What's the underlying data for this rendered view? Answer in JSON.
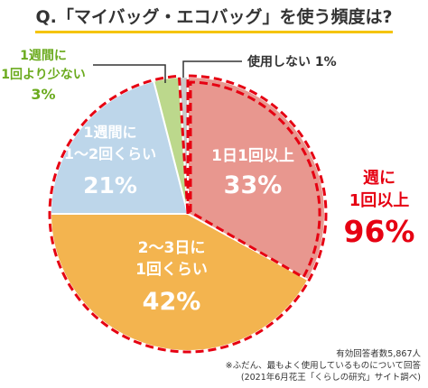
{
  "question": "Q.「マイバッグ・エコバッグ」を使う頻度は?",
  "chart_data": {
    "type": "pie",
    "slices": [
      {
        "label_lines": [
          "1日1回以上"
        ],
        "value": 33,
        "value_text": "33%",
        "color": "#e8978f",
        "label_color": "#ffffff"
      },
      {
        "label_lines": [
          "2〜3日に",
          "1回くらい"
        ],
        "value": 42,
        "value_text": "42%",
        "color": "#f3b44f",
        "label_color": "#ffffff"
      },
      {
        "label_lines": [
          "1週間に",
          "1〜2回くらい"
        ],
        "value": 21,
        "value_text": "21%",
        "color": "#bdd6ea",
        "label_color": "#ffffff"
      },
      {
        "label_lines": [
          "1週間に",
          "1回より少ない"
        ],
        "value": 3,
        "value_text": "3%",
        "color": "#bcd88c",
        "label_color": "#6cab1f"
      },
      {
        "label_lines": [
          "使用しない 1%"
        ],
        "value": 1,
        "value_text": "",
        "color": "#c9c9c9",
        "label_color": "#333333"
      }
    ],
    "callout": {
      "lines": [
        "週に",
        "1回以上"
      ],
      "value_text": "96%",
      "color": "#e60012"
    }
  },
  "footnotes": [
    "有効回答者数5,867人",
    "※ふだん、最もよく使用しているものについて回答",
    "(2021年6月花王「くらしの研究」サイト調べ)"
  ]
}
